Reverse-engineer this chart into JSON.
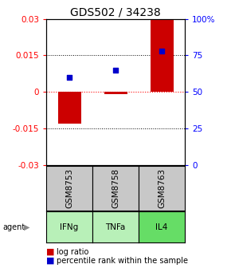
{
  "title": "GDS502 / 34238",
  "samples": [
    "GSM8753",
    "GSM8758",
    "GSM8763"
  ],
  "agents": [
    "IFNg",
    "TNFa",
    "IL4"
  ],
  "log_ratios": [
    -0.013,
    -0.001,
    0.03
  ],
  "percentile_ranks": [
    60,
    65,
    78
  ],
  "ylim_left": [
    -0.03,
    0.03
  ],
  "ylim_right": [
    0,
    100
  ],
  "yticks_left": [
    -0.03,
    -0.015,
    0,
    0.015,
    0.03
  ],
  "yticks_right": [
    0,
    25,
    50,
    75,
    100
  ],
  "ytick_left_labels": [
    "-0.03",
    "-0.015",
    "0",
    "0.015",
    "0.03"
  ],
  "ytick_right_labels": [
    "0",
    "25",
    "50",
    "75",
    "100%"
  ],
  "bar_color": "#cc0000",
  "dot_color": "#0000cc",
  "bar_width": 0.5,
  "sample_bg_color": "#c8c8c8",
  "agent_bg_colors": [
    "#b8f0b8",
    "#b8f0b8",
    "#66dd66"
  ],
  "agent_border_color": "#000000",
  "sample_border_color": "#000000",
  "title_fontsize": 10,
  "tick_fontsize": 7.5,
  "cell_fontsize": 7.5,
  "legend_fontsize": 7
}
